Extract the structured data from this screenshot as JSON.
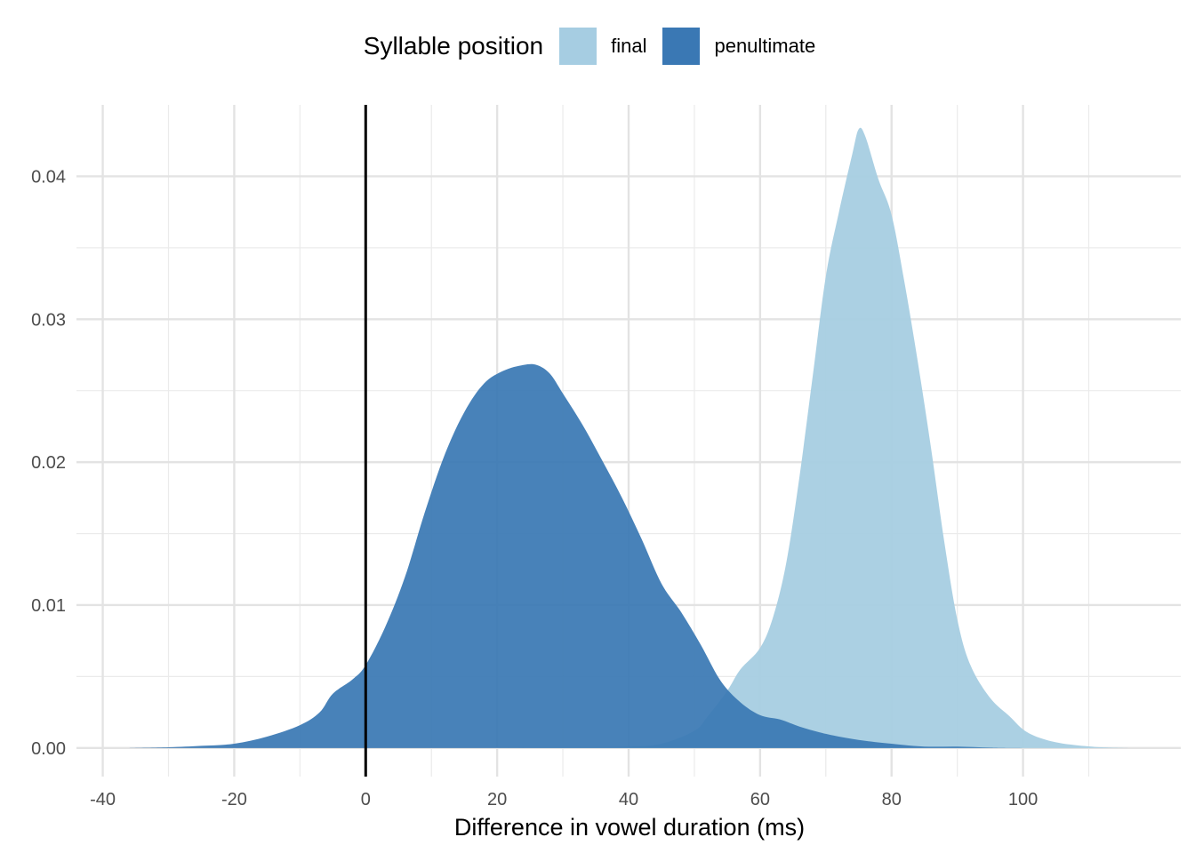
{
  "legend": {
    "title": "Syllable position",
    "entries": [
      {
        "label": "final",
        "color": "#a6cde2"
      },
      {
        "label": "penultimate",
        "color": "#3a78b4"
      }
    ]
  },
  "chart_data": {
    "type": "area",
    "subtype": "density",
    "title": "",
    "xlabel": "Difference in vowel duration (ms)",
    "ylabel": "",
    "xlim": [
      -44,
      124
    ],
    "ylim": [
      -0.002,
      0.045
    ],
    "x_ticks": [
      -40,
      -20,
      0,
      20,
      40,
      60,
      80,
      100
    ],
    "y_ticks": [
      0.0,
      0.01,
      0.02,
      0.03,
      0.04
    ],
    "y_tick_labels": [
      "0.00",
      "0.01",
      "0.02",
      "0.03",
      "0.04"
    ],
    "x_minor_grid": [
      -30,
      -10,
      10,
      30,
      50,
      70,
      90,
      110
    ],
    "y_minor_grid": [
      0.005,
      0.015,
      0.025,
      0.035
    ],
    "grid": true,
    "legend_position": "top",
    "reference_line": {
      "x": 0,
      "color": "#000000"
    },
    "series": [
      {
        "name": "final",
        "color": "#a6cde2",
        "opacity": 0.95,
        "points": [
          [
            -10,
            0
          ],
          [
            20,
            0
          ],
          [
            30,
            5e-05
          ],
          [
            40,
            0.0001
          ],
          [
            45,
            0.0003
          ],
          [
            50,
            0.0012
          ],
          [
            52,
            0.0022
          ],
          [
            55,
            0.004
          ],
          [
            57,
            0.0055
          ],
          [
            60,
            0.007
          ],
          [
            62,
            0.0092
          ],
          [
            64,
            0.013
          ],
          [
            66,
            0.019
          ],
          [
            68,
            0.026
          ],
          [
            70,
            0.033
          ],
          [
            72,
            0.0375
          ],
          [
            74,
            0.0415
          ],
          [
            75,
            0.0433
          ],
          [
            76,
            0.0428
          ],
          [
            78,
            0.0398
          ],
          [
            80,
            0.0373
          ],
          [
            82,
            0.0325
          ],
          [
            84,
            0.027
          ],
          [
            86,
            0.021
          ],
          [
            88,
            0.0145
          ],
          [
            90,
            0.009
          ],
          [
            92,
            0.0058
          ],
          [
            95,
            0.0035
          ],
          [
            98,
            0.0022
          ],
          [
            100,
            0.0013
          ],
          [
            102,
            0.0008
          ],
          [
            105,
            0.0004
          ],
          [
            108,
            0.0002
          ],
          [
            112,
            5e-05
          ],
          [
            116,
            0
          ]
        ]
      },
      {
        "name": "penultimate",
        "color": "#3a78b4",
        "opacity": 0.93,
        "points": [
          [
            -36,
            0
          ],
          [
            -30,
            5e-05
          ],
          [
            -25,
            0.00015
          ],
          [
            -20,
            0.0003
          ],
          [
            -15,
            0.0008
          ],
          [
            -10,
            0.0016
          ],
          [
            -7,
            0.0025
          ],
          [
            -5,
            0.0038
          ],
          [
            -2,
            0.0048
          ],
          [
            0,
            0.0058
          ],
          [
            3,
            0.0085
          ],
          [
            6,
            0.012
          ],
          [
            9,
            0.0165
          ],
          [
            12,
            0.0205
          ],
          [
            15,
            0.0235
          ],
          [
            18,
            0.0255
          ],
          [
            21,
            0.0264
          ],
          [
            24,
            0.0268
          ],
          [
            26,
            0.0268
          ],
          [
            28,
            0.0262
          ],
          [
            30,
            0.0248
          ],
          [
            33,
            0.0226
          ],
          [
            36,
            0.0201
          ],
          [
            39,
            0.0175
          ],
          [
            42,
            0.0146
          ],
          [
            45,
            0.0115
          ],
          [
            48,
            0.0095
          ],
          [
            51,
            0.0072
          ],
          [
            54,
            0.0047
          ],
          [
            57,
            0.0032
          ],
          [
            60,
            0.0023
          ],
          [
            63,
            0.002
          ],
          [
            66,
            0.0015
          ],
          [
            69,
            0.0011
          ],
          [
            72,
            0.0008
          ],
          [
            76,
            0.0005
          ],
          [
            80,
            0.0003
          ],
          [
            85,
            0.0001
          ],
          [
            90,
            0.0001
          ],
          [
            95,
            3e-05
          ],
          [
            100,
            0
          ],
          [
            110,
            0
          ],
          [
            116,
            0
          ]
        ]
      }
    ]
  }
}
